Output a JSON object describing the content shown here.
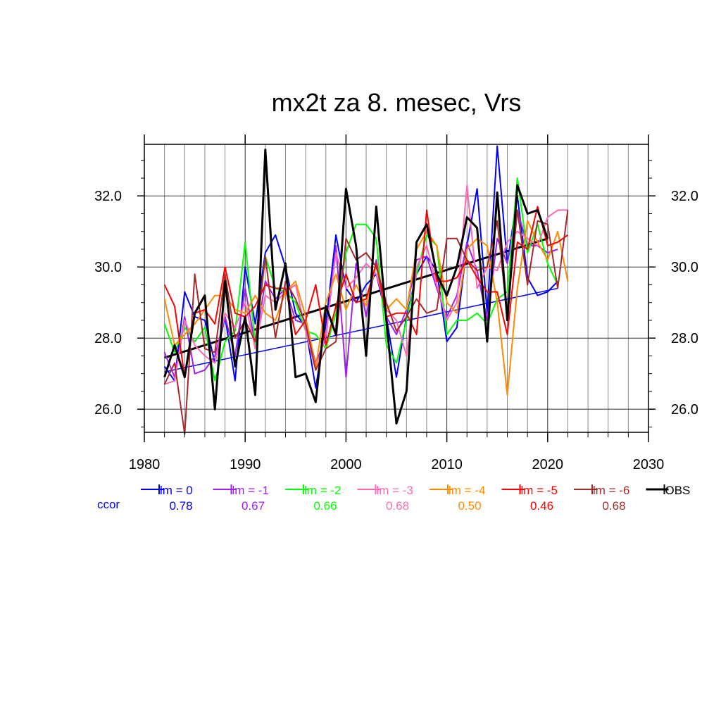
{
  "chart_data": {
    "type": "line",
    "title": "mx2t za 8. mesec, Vrs",
    "xlim": [
      1980,
      2030
    ],
    "ylim": [
      25.35,
      33.45
    ],
    "x_ticks": [
      1980,
      1990,
      2000,
      2010,
      2020,
      2030
    ],
    "x_tick_labels": [
      "1980",
      "1990",
      "2000",
      "2010",
      "2020",
      "2030"
    ],
    "y_ticks": [
      26,
      28,
      30,
      32
    ],
    "y_tick_labels": [
      "26.0",
      "28.0",
      "30.0",
      "32.0"
    ],
    "grid": true,
    "legend_position": "bottom",
    "ccor_label": "ccor",
    "series": [
      {
        "name": "lm = 0",
        "ccor": "0.78",
        "color": "#0000ff",
        "x": [
          1982,
          1983,
          1984,
          1985,
          1986,
          1987,
          1988,
          1989,
          1990,
          1991,
          1992,
          1993,
          1994,
          1995,
          1996,
          1997,
          1998,
          1999,
          2000,
          2001,
          2002,
          2003,
          2004,
          2005,
          2006,
          2007,
          2008,
          2009,
          2010,
          2011,
          2012,
          2013,
          2014,
          2015,
          2016,
          2017,
          2018,
          2019,
          2020,
          2021
        ],
        "y": [
          27.2,
          26.8,
          29.3,
          28.6,
          28.5,
          27.3,
          28.6,
          26.8,
          30.0,
          28.4,
          30.4,
          30.9,
          30.0,
          28.7,
          28.3,
          26.6,
          28.4,
          30.9,
          29.4,
          29.0,
          29.5,
          29.8,
          28.6,
          26.9,
          28.6,
          29.8,
          30.3,
          29.9,
          27.9,
          28.3,
          30.6,
          32.2,
          28.7,
          33.4,
          30.1,
          32.0,
          29.7,
          29.2,
          29.3,
          29.6
        ]
      },
      {
        "name": "lm = -1",
        "ccor": "0.67",
        "color": "#a020f0",
        "x": [
          1982,
          1983,
          1984,
          1985,
          1986,
          1987,
          1988,
          1989,
          1990,
          1991,
          1992,
          1993,
          1994,
          1995,
          1996,
          1997,
          1998,
          1999,
          2000,
          2001,
          2002,
          2003,
          2004,
          2005,
          2006,
          2007,
          2008,
          2009,
          2010,
          2011,
          2012,
          2013,
          2014,
          2015,
          2016,
          2017,
          2018,
          2019,
          2020,
          2021
        ],
        "y": [
          27.6,
          26.9,
          28.6,
          27.0,
          27.1,
          27.5,
          28.6,
          27.5,
          29.4,
          27.8,
          29.6,
          29.1,
          29.4,
          28.5,
          28.4,
          27.3,
          28.0,
          30.6,
          26.9,
          30.1,
          28.6,
          30.2,
          28.6,
          28.1,
          28.8,
          30.2,
          30.3,
          29.4,
          28.6,
          29.2,
          30.7,
          29.9,
          28.5,
          30.8,
          30.1,
          31.6,
          30.6,
          30.6,
          30.4,
          30.5
        ]
      },
      {
        "name": "lm = -2",
        "ccor": "0.66",
        "color": "#00ff00",
        "x": [
          1982,
          1983,
          1984,
          1985,
          1986,
          1987,
          1988,
          1989,
          1990,
          1991,
          1992,
          1993,
          1994,
          1995,
          1996,
          1997,
          1998,
          1999,
          2000,
          2001,
          2002,
          2003,
          2004,
          2005,
          2006,
          2007,
          2008,
          2009,
          2010,
          2011,
          2012,
          2013,
          2014,
          2015,
          2016,
          2017,
          2018,
          2019,
          2020,
          2021
        ],
        "y": [
          28.4,
          27.6,
          28.3,
          27.9,
          28.3,
          26.8,
          27.9,
          28.2,
          30.7,
          27.8,
          30.3,
          29.4,
          29.3,
          29.0,
          28.2,
          28.1,
          27.7,
          28.7,
          30.4,
          31.2,
          31.2,
          30.8,
          27.8,
          27.3,
          28.5,
          29.8,
          30.9,
          30.6,
          28.1,
          28.5,
          28.5,
          28.7,
          28.4,
          29.1,
          29.3,
          32.5,
          30.4,
          31.2,
          30.1,
          29.5
        ]
      },
      {
        "name": "lm = -3",
        "ccor": "0.68",
        "color": "#ff69b4",
        "x": [
          1982,
          1983,
          1984,
          1985,
          1986,
          1987,
          1988,
          1989,
          1990,
          1991,
          1992,
          1993,
          1994,
          1995,
          1996,
          1997,
          1998,
          1999,
          2000,
          2001,
          2002,
          2003,
          2004,
          2005,
          2006,
          2007,
          2008,
          2009,
          2010,
          2011,
          2012,
          2013,
          2014,
          2015,
          2016,
          2017,
          2018,
          2019,
          2020,
          2021,
          2022
        ],
        "y": [
          26.7,
          26.8,
          28.5,
          27.8,
          27.5,
          27.3,
          28.7,
          28.3,
          29.0,
          27.7,
          29.2,
          29.0,
          29.3,
          29.5,
          28.2,
          27.1,
          28.1,
          30.4,
          29.4,
          29.7,
          30.1,
          29.8,
          28.8,
          28.5,
          27.5,
          30.0,
          30.6,
          29.5,
          28.5,
          29.0,
          32.3,
          29.4,
          30.0,
          29.9,
          30.7,
          31.0,
          30.8,
          30.6,
          31.4,
          31.6,
          31.6
        ]
      },
      {
        "name": "lm = -4",
        "ccor": "0.50",
        "color": "#ff8c00",
        "x": [
          1982,
          1983,
          1984,
          1985,
          1986,
          1987,
          1988,
          1989,
          1990,
          1991,
          1992,
          1993,
          1994,
          1995,
          1996,
          1997,
          1998,
          1999,
          2000,
          2001,
          2002,
          2003,
          2004,
          2005,
          2006,
          2007,
          2008,
          2009,
          2010,
          2011,
          2012,
          2013,
          2014,
          2015,
          2016,
          2017,
          2018,
          2019,
          2020,
          2021,
          2022
        ],
        "y": [
          29.1,
          27.8,
          28.1,
          28.4,
          28.8,
          29.2,
          29.2,
          28.8,
          28.7,
          29.2,
          28.7,
          28.5,
          29.3,
          29.6,
          28.6,
          27.2,
          29.0,
          29.8,
          28.8,
          29.5,
          28.9,
          30.1,
          28.8,
          29.1,
          28.8,
          30.5,
          31.0,
          30.6,
          29.0,
          28.7,
          30.5,
          30.8,
          30.6,
          29.0,
          26.4,
          29.4,
          31.3,
          30.7,
          30.2,
          31.0,
          29.6
        ]
      },
      {
        "name": "lm = -5",
        "ccor": "0.46",
        "color": "#ff0000",
        "x": [
          1982,
          1983,
          1984,
          1985,
          1986,
          1987,
          1988,
          1989,
          1990,
          1991,
          1992,
          1993,
          1994,
          1995,
          1996,
          1997,
          1998,
          1999,
          2000,
          2001,
          2002,
          2003,
          2004,
          2005,
          2006,
          2007,
          2008,
          2009,
          2010,
          2011,
          2012,
          2013,
          2014,
          2015,
          2016,
          2017,
          2018,
          2019,
          2020,
          2021,
          2022
        ],
        "y": [
          29.5,
          28.9,
          26.9,
          28.7,
          28.8,
          28.4,
          30.0,
          28.7,
          28.6,
          28.9,
          29.5,
          29.4,
          29.4,
          28.1,
          28.5,
          29.5,
          27.8,
          28.9,
          29.8,
          29.0,
          29.1,
          30.1,
          28.6,
          28.7,
          28.7,
          28.1,
          31.6,
          29.6,
          29.6,
          29.7,
          30.2,
          29.7,
          29.3,
          29.3,
          28.1,
          30.7,
          30.5,
          31.7,
          30.6,
          30.7,
          30.9
        ]
      },
      {
        "name": "lm = -6",
        "ccor": "0.68",
        "color": "#a52a2a",
        "x": [
          1982,
          1983,
          1984,
          1985,
          1986,
          1987,
          1988,
          1989,
          1990,
          1991,
          1992,
          1993,
          1994,
          1995,
          1996,
          1997,
          1998,
          1999,
          2000,
          2001,
          2002,
          2003,
          2004,
          2005,
          2006,
          2007,
          2008,
          2009,
          2010,
          2011,
          2012,
          2013,
          2014,
          2015,
          2016,
          2017,
          2018,
          2019,
          2020,
          2021,
          2022
        ],
        "y": [
          26.7,
          27.3,
          25.3,
          29.8,
          27.7,
          27.6,
          29.8,
          28.0,
          28.5,
          27.9,
          30.3,
          28.0,
          29.6,
          29.1,
          28.4,
          27.1,
          27.7,
          27.9,
          30.8,
          30.2,
          30.4,
          30.0,
          29.0,
          28.2,
          28.6,
          29.1,
          28.7,
          28.8,
          30.8,
          30.8,
          30.2,
          29.9,
          30.0,
          31.3,
          28.6,
          31.6,
          29.5,
          31.3,
          31.2,
          29.4,
          31.6
        ]
      },
      {
        "name": "OBS",
        "ccor": "",
        "color": "#000000",
        "x": [
          1982,
          1983,
          1984,
          1985,
          1986,
          1987,
          1988,
          1989,
          1990,
          1991,
          1992,
          1993,
          1994,
          1995,
          1996,
          1997,
          1998,
          1999,
          2000,
          2001,
          2002,
          2003,
          2004,
          2005,
          2006,
          2007,
          2008,
          2009,
          2010,
          2011,
          2012,
          2013,
          2014,
          2015,
          2016,
          2017,
          2018,
          2019,
          2020
        ],
        "y": [
          26.9,
          27.8,
          26.9,
          28.7,
          29.2,
          26.0,
          29.6,
          27.2,
          28.6,
          26.4,
          33.3,
          28.8,
          30.1,
          26.9,
          27.0,
          26.2,
          28.9,
          28.1,
          32.2,
          30.6,
          27.5,
          31.7,
          28.5,
          25.6,
          26.5,
          30.7,
          31.2,
          29.8,
          29.2,
          30.0,
          31.4,
          31.1,
          27.9,
          32.1,
          28.5,
          32.3,
          31.5,
          31.6,
          30.8
        ]
      }
    ],
    "trend_lines": [
      {
        "color": "#000000",
        "x": [
          1982,
          2020
        ],
        "y": [
          27.45,
          30.8
        ]
      },
      {
        "color": "#0000ff",
        "x": [
          1982,
          2021
        ],
        "y": [
          27.05,
          29.4
        ]
      }
    ]
  }
}
